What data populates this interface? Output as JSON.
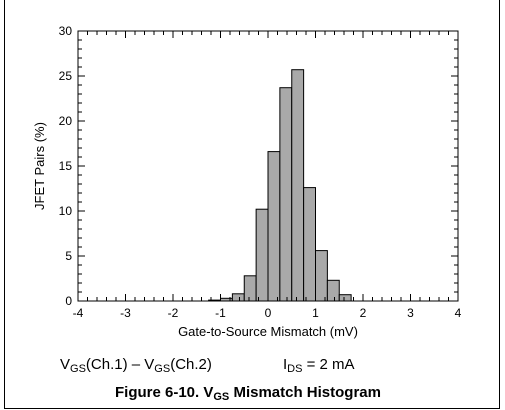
{
  "chart_data": {
    "type": "bar",
    "title": "",
    "xlabel": "Gate-to-Source Mismatch (mV)",
    "ylabel": "JFET Pairs (%)",
    "xlim": [
      -4,
      4
    ],
    "ylim": [
      0,
      30
    ],
    "x_ticks": [
      "-4",
      "-3",
      "-2",
      "-1",
      "0",
      "1",
      "2",
      "3",
      "4"
    ],
    "y_ticks": [
      "0",
      "5",
      "10",
      "15",
      "20",
      "25",
      "30"
    ],
    "bin_width": 0.25,
    "bin_starts": [
      -1.25,
      -1.0,
      -0.75,
      -0.5,
      -0.25,
      0.0,
      0.25,
      0.5,
      0.75,
      1.0,
      1.25,
      1.5
    ],
    "values": [
      0.1,
      0.3,
      0.8,
      2.8,
      10.2,
      16.6,
      23.7,
      25.7,
      12.6,
      5.6,
      2.3,
      0.7
    ],
    "grid": false
  },
  "notes": {
    "formula": {
      "v1": "V",
      "v1_sub": "GS",
      "v1_rest": "(Ch.1) – ",
      "v2": "V",
      "v2_sub": "GS",
      "v2_rest": "(Ch.2)"
    },
    "condition": {
      "i": "I",
      "i_sub": "DS",
      "rest": " = 2 mA"
    }
  },
  "caption": {
    "prefix": "Figure 6-10. V",
    "sub": "GS",
    "suffix": " Mismatch Histogram"
  }
}
